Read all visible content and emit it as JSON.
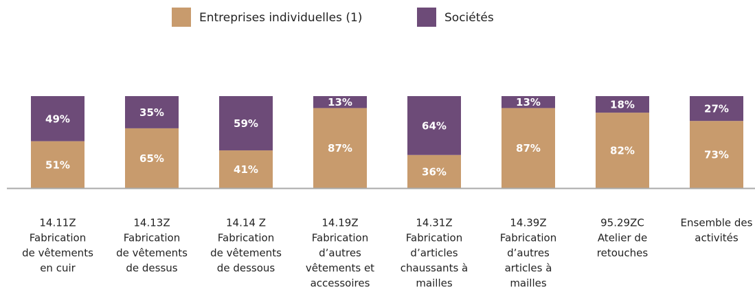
{
  "chart_data": {
    "type": "stacked-bar",
    "categories": [
      [
        "14.11Z",
        "Fabrication",
        "de vêtements",
        "en cuir"
      ],
      [
        "14.13Z",
        "Fabrication",
        "de vêtements",
        "de dessus"
      ],
      [
        "14.14 Z",
        "Fabrication",
        "de vêtements",
        "de dessous"
      ],
      [
        "14.19Z",
        "Fabrication",
        "d’autres",
        "vêtements et",
        "accessoires"
      ],
      [
        "14.31Z",
        "Fabrication",
        "d’articles",
        "chaussants à",
        "mailles"
      ],
      [
        "14.39Z",
        "Fabrication",
        "d’autres",
        "articles à",
        "mailles"
      ],
      [
        "95.29ZC",
        "Atelier de",
        "retouches"
      ],
      [
        "Ensemble des",
        "activités"
      ]
    ],
    "series": [
      {
        "name": "Entreprises individuelles (1)",
        "color": "#c89b6d",
        "values": [
          51,
          65,
          41,
          87,
          36,
          87,
          82,
          73
        ],
        "value_labels": [
          "51%",
          "65%",
          "41%",
          "87%",
          "36%",
          "87%",
          "82%",
          "73%"
        ]
      },
      {
        "name": "Sociétés",
        "color": "#6d4b78",
        "values": [
          49,
          35,
          59,
          13,
          64,
          13,
          18,
          27
        ],
        "value_labels": [
          "49%",
          "35%",
          "59%",
          "13%",
          "64%",
          "13%",
          "18%",
          "27%"
        ]
      }
    ],
    "ylim": [
      0,
      100
    ]
  }
}
